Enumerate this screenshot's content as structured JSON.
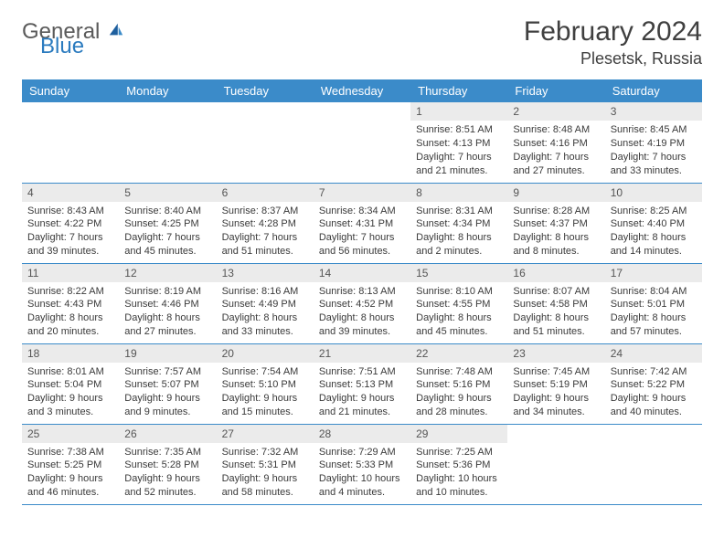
{
  "brand": {
    "general": "General",
    "blue": "Blue"
  },
  "title": "February 2024",
  "location": "Plesetsk, Russia",
  "colors": {
    "header_bg": "#3b8bc9",
    "header_text": "#ffffff",
    "daynum_bg": "#ebebeb",
    "body_text": "#3a3a3a",
    "rule": "#3b8bc9",
    "brand_gray": "#5a5a5a",
    "brand_blue": "#2b7bbf"
  },
  "weekdays": [
    "Sunday",
    "Monday",
    "Tuesday",
    "Wednesday",
    "Thursday",
    "Friday",
    "Saturday"
  ],
  "grid": [
    [
      null,
      null,
      null,
      null,
      {
        "n": "1",
        "sr": "Sunrise: 8:51 AM",
        "ss": "Sunset: 4:13 PM",
        "d1": "Daylight: 7 hours",
        "d2": "and 21 minutes."
      },
      {
        "n": "2",
        "sr": "Sunrise: 8:48 AM",
        "ss": "Sunset: 4:16 PM",
        "d1": "Daylight: 7 hours",
        "d2": "and 27 minutes."
      },
      {
        "n": "3",
        "sr": "Sunrise: 8:45 AM",
        "ss": "Sunset: 4:19 PM",
        "d1": "Daylight: 7 hours",
        "d2": "and 33 minutes."
      }
    ],
    [
      {
        "n": "4",
        "sr": "Sunrise: 8:43 AM",
        "ss": "Sunset: 4:22 PM",
        "d1": "Daylight: 7 hours",
        "d2": "and 39 minutes."
      },
      {
        "n": "5",
        "sr": "Sunrise: 8:40 AM",
        "ss": "Sunset: 4:25 PM",
        "d1": "Daylight: 7 hours",
        "d2": "and 45 minutes."
      },
      {
        "n": "6",
        "sr": "Sunrise: 8:37 AM",
        "ss": "Sunset: 4:28 PM",
        "d1": "Daylight: 7 hours",
        "d2": "and 51 minutes."
      },
      {
        "n": "7",
        "sr": "Sunrise: 8:34 AM",
        "ss": "Sunset: 4:31 PM",
        "d1": "Daylight: 7 hours",
        "d2": "and 56 minutes."
      },
      {
        "n": "8",
        "sr": "Sunrise: 8:31 AM",
        "ss": "Sunset: 4:34 PM",
        "d1": "Daylight: 8 hours",
        "d2": "and 2 minutes."
      },
      {
        "n": "9",
        "sr": "Sunrise: 8:28 AM",
        "ss": "Sunset: 4:37 PM",
        "d1": "Daylight: 8 hours",
        "d2": "and 8 minutes."
      },
      {
        "n": "10",
        "sr": "Sunrise: 8:25 AM",
        "ss": "Sunset: 4:40 PM",
        "d1": "Daylight: 8 hours",
        "d2": "and 14 minutes."
      }
    ],
    [
      {
        "n": "11",
        "sr": "Sunrise: 8:22 AM",
        "ss": "Sunset: 4:43 PM",
        "d1": "Daylight: 8 hours",
        "d2": "and 20 minutes."
      },
      {
        "n": "12",
        "sr": "Sunrise: 8:19 AM",
        "ss": "Sunset: 4:46 PM",
        "d1": "Daylight: 8 hours",
        "d2": "and 27 minutes."
      },
      {
        "n": "13",
        "sr": "Sunrise: 8:16 AM",
        "ss": "Sunset: 4:49 PM",
        "d1": "Daylight: 8 hours",
        "d2": "and 33 minutes."
      },
      {
        "n": "14",
        "sr": "Sunrise: 8:13 AM",
        "ss": "Sunset: 4:52 PM",
        "d1": "Daylight: 8 hours",
        "d2": "and 39 minutes."
      },
      {
        "n": "15",
        "sr": "Sunrise: 8:10 AM",
        "ss": "Sunset: 4:55 PM",
        "d1": "Daylight: 8 hours",
        "d2": "and 45 minutes."
      },
      {
        "n": "16",
        "sr": "Sunrise: 8:07 AM",
        "ss": "Sunset: 4:58 PM",
        "d1": "Daylight: 8 hours",
        "d2": "and 51 minutes."
      },
      {
        "n": "17",
        "sr": "Sunrise: 8:04 AM",
        "ss": "Sunset: 5:01 PM",
        "d1": "Daylight: 8 hours",
        "d2": "and 57 minutes."
      }
    ],
    [
      {
        "n": "18",
        "sr": "Sunrise: 8:01 AM",
        "ss": "Sunset: 5:04 PM",
        "d1": "Daylight: 9 hours",
        "d2": "and 3 minutes."
      },
      {
        "n": "19",
        "sr": "Sunrise: 7:57 AM",
        "ss": "Sunset: 5:07 PM",
        "d1": "Daylight: 9 hours",
        "d2": "and 9 minutes."
      },
      {
        "n": "20",
        "sr": "Sunrise: 7:54 AM",
        "ss": "Sunset: 5:10 PM",
        "d1": "Daylight: 9 hours",
        "d2": "and 15 minutes."
      },
      {
        "n": "21",
        "sr": "Sunrise: 7:51 AM",
        "ss": "Sunset: 5:13 PM",
        "d1": "Daylight: 9 hours",
        "d2": "and 21 minutes."
      },
      {
        "n": "22",
        "sr": "Sunrise: 7:48 AM",
        "ss": "Sunset: 5:16 PM",
        "d1": "Daylight: 9 hours",
        "d2": "and 28 minutes."
      },
      {
        "n": "23",
        "sr": "Sunrise: 7:45 AM",
        "ss": "Sunset: 5:19 PM",
        "d1": "Daylight: 9 hours",
        "d2": "and 34 minutes."
      },
      {
        "n": "24",
        "sr": "Sunrise: 7:42 AM",
        "ss": "Sunset: 5:22 PM",
        "d1": "Daylight: 9 hours",
        "d2": "and 40 minutes."
      }
    ],
    [
      {
        "n": "25",
        "sr": "Sunrise: 7:38 AM",
        "ss": "Sunset: 5:25 PM",
        "d1": "Daylight: 9 hours",
        "d2": "and 46 minutes."
      },
      {
        "n": "26",
        "sr": "Sunrise: 7:35 AM",
        "ss": "Sunset: 5:28 PM",
        "d1": "Daylight: 9 hours",
        "d2": "and 52 minutes."
      },
      {
        "n": "27",
        "sr": "Sunrise: 7:32 AM",
        "ss": "Sunset: 5:31 PM",
        "d1": "Daylight: 9 hours",
        "d2": "and 58 minutes."
      },
      {
        "n": "28",
        "sr": "Sunrise: 7:29 AM",
        "ss": "Sunset: 5:33 PM",
        "d1": "Daylight: 10 hours",
        "d2": "and 4 minutes."
      },
      {
        "n": "29",
        "sr": "Sunrise: 7:25 AM",
        "ss": "Sunset: 5:36 PM",
        "d1": "Daylight: 10 hours",
        "d2": "and 10 minutes."
      },
      null,
      null
    ]
  ]
}
